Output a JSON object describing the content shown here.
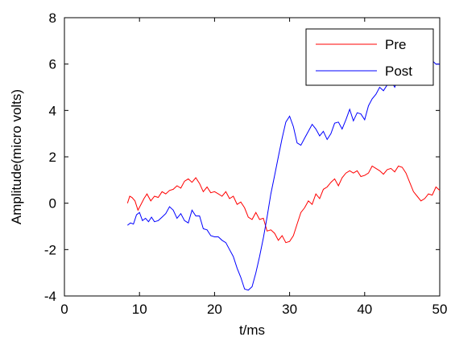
{
  "chart_data": {
    "type": "line",
    "xlabel": "t/ms",
    "ylabel": "Amplitude(micro volts)",
    "xlim": [
      0,
      50
    ],
    "ylim": [
      -4,
      8
    ],
    "xticks": [
      0,
      10,
      20,
      30,
      40,
      50
    ],
    "yticks": [
      -4,
      -2,
      0,
      2,
      4,
      6,
      8
    ],
    "grid": false,
    "legend_position": "top-right",
    "series": [
      {
        "name": "Pre",
        "color": "#ff0000",
        "x": [
          8.4,
          8.7,
          9.0,
          9.4,
          9.8,
          10.2,
          10.6,
          11.0,
          11.5,
          12.0,
          12.5,
          13.0,
          13.5,
          14.0,
          14.5,
          15.0,
          15.5,
          16.0,
          16.5,
          17.0,
          17.5,
          18.0,
          18.5,
          19.0,
          19.5,
          20.0,
          20.5,
          21.0,
          21.5,
          22.0,
          22.5,
          23.0,
          23.5,
          24.0,
          24.5,
          25.0,
          25.5,
          26.0,
          26.5,
          27.0,
          27.5,
          28.0,
          28.5,
          29.0,
          29.5,
          30.0,
          30.5,
          31.0,
          31.5,
          32.0,
          32.5,
          33.0,
          33.5,
          34.0,
          34.5,
          35.0,
          35.5,
          36.0,
          36.5,
          37.0,
          37.5,
          38.0,
          38.5,
          39.0,
          39.5,
          40.0,
          40.5,
          41.0,
          41.5,
          42.0,
          42.5,
          43.0,
          43.5,
          44.0,
          44.5,
          45.0,
          45.5,
          46.0,
          46.5,
          47.0,
          47.5,
          48.0,
          48.5,
          49.0,
          49.5,
          50.0
        ],
        "values": [
          0.0,
          0.3,
          0.25,
          0.1,
          -0.3,
          -0.05,
          0.2,
          0.4,
          0.1,
          0.3,
          0.25,
          0.5,
          0.4,
          0.55,
          0.6,
          0.75,
          0.65,
          0.95,
          1.05,
          0.9,
          1.1,
          0.85,
          0.5,
          0.7,
          0.45,
          0.5,
          0.4,
          0.3,
          0.5,
          0.2,
          0.3,
          -0.05,
          0.05,
          -0.2,
          -0.6,
          -0.7,
          -0.4,
          -0.7,
          -0.65,
          -1.2,
          -1.15,
          -1.3,
          -1.6,
          -1.4,
          -1.7,
          -1.65,
          -1.4,
          -0.9,
          -0.4,
          -0.2,
          0.1,
          -0.05,
          0.4,
          0.2,
          0.6,
          0.7,
          0.9,
          1.05,
          0.75,
          1.1,
          1.3,
          1.4,
          1.3,
          1.4,
          1.15,
          1.2,
          1.3,
          1.6,
          1.5,
          1.4,
          1.25,
          1.45,
          1.5,
          1.35,
          1.6,
          1.55,
          1.3,
          0.9,
          0.5,
          0.3,
          0.1,
          0.2,
          0.4,
          0.35,
          0.7,
          0.55
        ]
      },
      {
        "name": "Post",
        "color": "#0000ff",
        "x": [
          8.4,
          8.8,
          9.2,
          9.6,
          10.0,
          10.4,
          10.8,
          11.2,
          11.6,
          12.0,
          12.5,
          13.0,
          13.5,
          14.0,
          14.5,
          15.0,
          15.5,
          16.0,
          16.5,
          17.0,
          17.5,
          18.0,
          18.5,
          19.0,
          19.5,
          20.0,
          20.5,
          21.0,
          21.5,
          22.0,
          22.5,
          23.0,
          23.5,
          24.0,
          24.5,
          25.0,
          25.5,
          26.0,
          26.5,
          27.0,
          27.5,
          28.0,
          28.5,
          29.0,
          29.5,
          30.0,
          30.5,
          31.0,
          31.5,
          32.0,
          32.5,
          33.0,
          33.5,
          34.0,
          34.5,
          35.0,
          35.5,
          36.0,
          36.5,
          37.0,
          37.5,
          38.0,
          38.5,
          39.0,
          39.5,
          40.0,
          40.5,
          41.0,
          41.5,
          42.0,
          42.5,
          43.0,
          43.5,
          44.0,
          44.5,
          45.0,
          45.5,
          46.0,
          46.5,
          47.0,
          47.5,
          48.0,
          48.5,
          49.0,
          49.5,
          50.0
        ],
        "values": [
          -0.95,
          -0.85,
          -0.9,
          -0.5,
          -0.4,
          -0.75,
          -0.65,
          -0.8,
          -0.6,
          -0.8,
          -0.75,
          -0.6,
          -0.45,
          -0.15,
          -0.3,
          -0.65,
          -0.45,
          -0.75,
          -0.85,
          -0.3,
          -0.55,
          -0.55,
          -1.1,
          -1.15,
          -1.4,
          -1.45,
          -1.45,
          -1.6,
          -1.7,
          -2.0,
          -2.3,
          -2.8,
          -3.2,
          -3.7,
          -3.75,
          -3.6,
          -3.0,
          -2.3,
          -1.5,
          -0.6,
          0.4,
          1.2,
          2.0,
          2.8,
          3.5,
          3.75,
          3.3,
          2.6,
          2.5,
          2.8,
          3.1,
          3.4,
          3.2,
          2.9,
          3.1,
          2.75,
          3.0,
          3.45,
          3.5,
          3.2,
          3.6,
          4.05,
          3.55,
          3.9,
          3.85,
          3.6,
          4.2,
          4.5,
          4.7,
          5.0,
          4.85,
          5.1,
          5.3,
          5.0,
          5.4,
          5.6,
          5.55,
          5.9,
          5.8,
          6.0,
          5.85,
          5.95,
          6.2,
          6.15,
          6.0,
          6.0
        ]
      }
    ]
  }
}
